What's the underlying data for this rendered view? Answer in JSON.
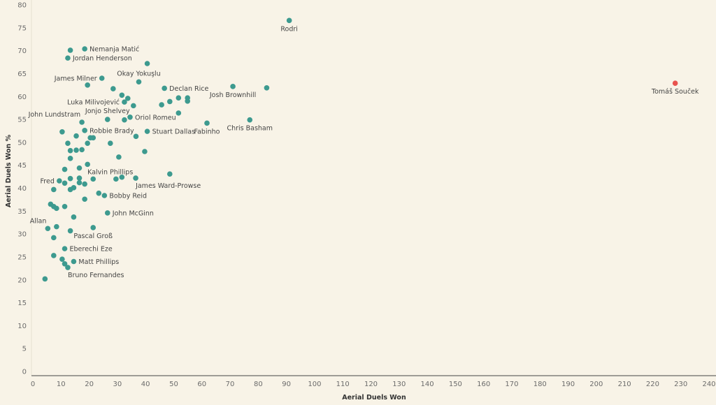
{
  "chart_data": {
    "type": "scatter",
    "title": "",
    "xlabel": "Aerial Duels Won",
    "ylabel": "Aerial Duels Won %",
    "xlim": [
      0,
      240
    ],
    "ylim": [
      0,
      80
    ],
    "xticks": [
      0,
      10,
      20,
      30,
      40,
      50,
      60,
      70,
      80,
      90,
      100,
      110,
      120,
      130,
      140,
      150,
      160,
      170,
      180,
      190,
      200,
      210,
      220,
      230,
      240
    ],
    "yticks": [
      0,
      5,
      10,
      15,
      20,
      25,
      30,
      35,
      40,
      45,
      50,
      55,
      60,
      65,
      70,
      75,
      80
    ],
    "grid": false,
    "colors": {
      "default": "#3d9a8f",
      "highlight": "#e8534e"
    },
    "points": [
      {
        "x": 91,
        "y": 76.6,
        "label": "Rodri",
        "label_pos": "below"
      },
      {
        "x": 228,
        "y": 62.9,
        "label": "Tomáš Souček",
        "label_pos": "below",
        "highlight": true
      },
      {
        "x": 13.3,
        "y": 70.1
      },
      {
        "x": 18.4,
        "y": 70.4,
        "label": "Nemanja Matić",
        "label_pos": "right"
      },
      {
        "x": 12.4,
        "y": 68.4,
        "label": "Jordan Henderson",
        "label_pos": "right"
      },
      {
        "x": 40.6,
        "y": 67.2
      },
      {
        "x": 24.5,
        "y": 64.0,
        "label": "James Milner",
        "label_pos": "left"
      },
      {
        "x": 37.6,
        "y": 63.2,
        "label": "Okay Yokuşlu",
        "label_pos": "above"
      },
      {
        "x": 19.4,
        "y": 62.5
      },
      {
        "x": 28.5,
        "y": 61.7
      },
      {
        "x": 46.7,
        "y": 61.8,
        "label": "Declan Rice",
        "label_pos": "right"
      },
      {
        "x": 31.6,
        "y": 60.3
      },
      {
        "x": 33.7,
        "y": 59.6
      },
      {
        "x": 32.5,
        "y": 58.8,
        "label": "Luka Milivojević",
        "label_pos": "left"
      },
      {
        "x": 35.7,
        "y": 58.0
      },
      {
        "x": 45.7,
        "y": 58.2
      },
      {
        "x": 48.6,
        "y": 58.9
      },
      {
        "x": 51.7,
        "y": 59.7
      },
      {
        "x": 54.9,
        "y": 59.7
      },
      {
        "x": 54.9,
        "y": 59.0
      },
      {
        "x": 51.7,
        "y": 56.4
      },
      {
        "x": 71,
        "y": 62.2,
        "label": "Josh Brownhill",
        "label_pos": "below"
      },
      {
        "x": 83,
        "y": 61.9
      },
      {
        "x": 77,
        "y": 54.9,
        "label": "Chris Basham",
        "label_pos": "below"
      },
      {
        "x": 61.8,
        "y": 54.2,
        "label": "Fabinho",
        "label_pos": "below"
      },
      {
        "x": 34.5,
        "y": 55.5,
        "label": "Oriol Romeu",
        "label_pos": "right"
      },
      {
        "x": 26.5,
        "y": 55.0,
        "label": "Jonjo Shelvey",
        "label_pos": "above"
      },
      {
        "x": 32.5,
        "y": 54.9
      },
      {
        "x": 17.4,
        "y": 54.4,
        "label": "John Lundstram",
        "label_pos": "above-left"
      },
      {
        "x": 10.4,
        "y": 52.3
      },
      {
        "x": 18.4,
        "y": 52.6,
        "label": "Robbie Brady",
        "label_pos": "right"
      },
      {
        "x": 40.6,
        "y": 52.4,
        "label": "Stuart Dallas",
        "label_pos": "right"
      },
      {
        "x": 15.4,
        "y": 51.4
      },
      {
        "x": 20.4,
        "y": 51.0
      },
      {
        "x": 21.4,
        "y": 51.0
      },
      {
        "x": 36.6,
        "y": 51.3
      },
      {
        "x": 12.4,
        "y": 49.8
      },
      {
        "x": 19.4,
        "y": 49.8
      },
      {
        "x": 27.5,
        "y": 49.8
      },
      {
        "x": 13.3,
        "y": 48.2
      },
      {
        "x": 15.4,
        "y": 48.3
      },
      {
        "x": 17.4,
        "y": 48.4
      },
      {
        "x": 39.7,
        "y": 48.0
      },
      {
        "x": 13.3,
        "y": 46.5
      },
      {
        "x": 30.5,
        "y": 46.8
      },
      {
        "x": 19.4,
        "y": 45.2,
        "label": "Kalvin Phillips",
        "label_pos": "below-right"
      },
      {
        "x": 11.3,
        "y": 44.1
      },
      {
        "x": 16.5,
        "y": 44.4
      },
      {
        "x": 9.4,
        "y": 41.6,
        "label": "Fred",
        "label_pos": "left"
      },
      {
        "x": 11.3,
        "y": 41.1
      },
      {
        "x": 13.3,
        "y": 42.1
      },
      {
        "x": 16.5,
        "y": 42.2
      },
      {
        "x": 16.5,
        "y": 41.2
      },
      {
        "x": 18.4,
        "y": 40.9
      },
      {
        "x": 21.4,
        "y": 42.0
      },
      {
        "x": 7.4,
        "y": 39.7
      },
      {
        "x": 13.3,
        "y": 39.7
      },
      {
        "x": 14.5,
        "y": 40.1
      },
      {
        "x": 29.5,
        "y": 42.0
      },
      {
        "x": 31.6,
        "y": 42.4
      },
      {
        "x": 36.5,
        "y": 42.2,
        "label": "James Ward-Prowse",
        "label_pos": "below-right"
      },
      {
        "x": 48.6,
        "y": 43.1
      },
      {
        "x": 23.4,
        "y": 38.9
      },
      {
        "x": 25.4,
        "y": 38.4,
        "label": "Bobby Reid",
        "label_pos": "right"
      },
      {
        "x": 18.4,
        "y": 37.6
      },
      {
        "x": 6.3,
        "y": 36.5
      },
      {
        "x": 7.4,
        "y": 36.0
      },
      {
        "x": 8.4,
        "y": 35.6
      },
      {
        "x": 11.3,
        "y": 36.0
      },
      {
        "x": 26.5,
        "y": 34.6,
        "label": "John McGinn",
        "label_pos": "right"
      },
      {
        "x": 14.5,
        "y": 33.7
      },
      {
        "x": 5.3,
        "y": 31.2,
        "label": "Allan",
        "label_pos": "above-left"
      },
      {
        "x": 8.4,
        "y": 31.6
      },
      {
        "x": 13.3,
        "y": 30.7
      },
      {
        "x": 21.4,
        "y": 31.4,
        "label": "Pascal Groß",
        "label_pos": "below"
      },
      {
        "x": 7.4,
        "y": 29.2
      },
      {
        "x": 11.3,
        "y": 26.8,
        "label": "Eberechi Eze",
        "label_pos": "right"
      },
      {
        "x": 7.4,
        "y": 25.3
      },
      {
        "x": 10.4,
        "y": 24.5
      },
      {
        "x": 14.5,
        "y": 24.0,
        "label": "Matt Phillips",
        "label_pos": "right"
      },
      {
        "x": 11.3,
        "y": 23.5
      },
      {
        "x": 12.4,
        "y": 22.7,
        "label": "Bruno Fernandes",
        "label_pos": "below-right"
      },
      {
        "x": 4.3,
        "y": 20.2
      }
    ]
  }
}
